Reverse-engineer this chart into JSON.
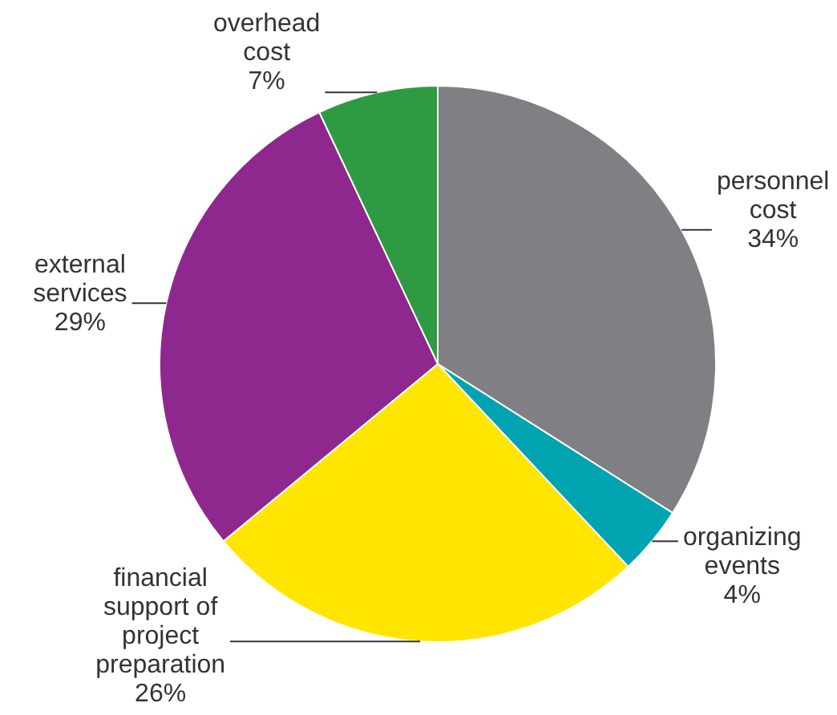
{
  "chart_data": {
    "type": "pie",
    "categories": [
      "personnel cost",
      "organizing events",
      "financial support of project preparation",
      "external services",
      "overhead cost"
    ],
    "values": [
      34,
      4,
      26,
      29,
      7
    ],
    "colors": [
      "#807f83",
      "#00a4b0",
      "#ffe500",
      "#8e278e",
      "#2e9a41"
    ],
    "value_labels": [
      "34%",
      "4%",
      "26%",
      "29%",
      "7%"
    ],
    "legend": false
  }
}
